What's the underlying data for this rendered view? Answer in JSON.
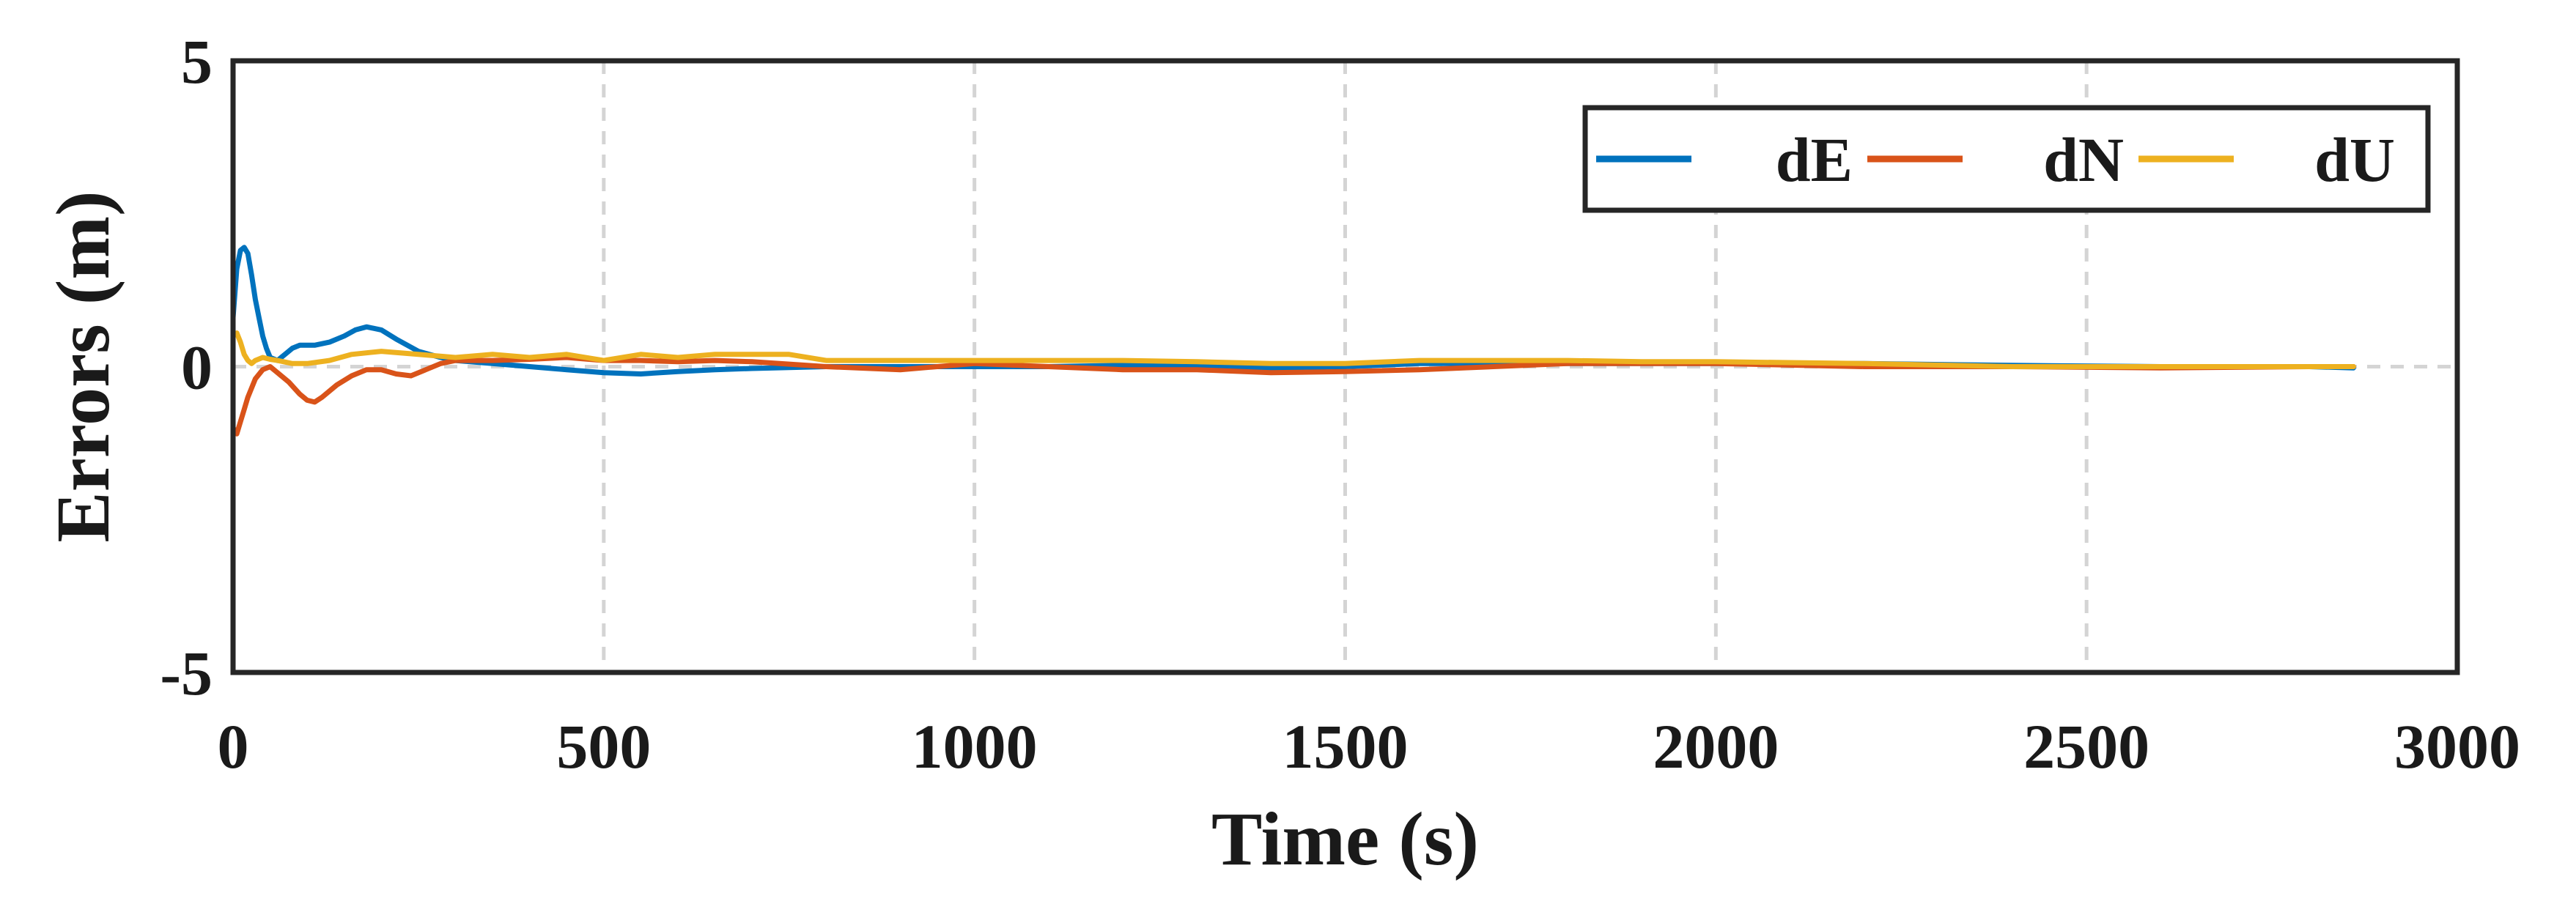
{
  "chart_data": {
    "type": "line",
    "title": "",
    "xlabel": "Time (s)",
    "ylabel": "Errors (m)",
    "xlim": [
      0,
      3000
    ],
    "ylim": [
      -5,
      5
    ],
    "xticks": [
      "0",
      "500",
      "1000",
      "1500",
      "2000",
      "2500",
      "3000"
    ],
    "yticks": [
      "-5",
      "0",
      "5"
    ],
    "grid": "vertical dashed",
    "legend": "top-right, horizontal",
    "series": [
      {
        "name": "dE",
        "color": "#0072BD",
        "x": [
          0,
          5,
          10,
          15,
          20,
          25,
          30,
          35,
          40,
          45,
          50,
          60,
          70,
          80,
          90,
          110,
          130,
          150,
          165,
          180,
          200,
          220,
          250,
          280,
          300,
          350,
          400,
          450,
          500,
          550,
          600,
          650,
          700,
          800,
          900,
          1000,
          1100,
          1200,
          1300,
          1400,
          1500,
          1600,
          1700,
          1800,
          1900,
          2000,
          2200,
          2400,
          2600,
          2800,
          2860
        ],
        "y": [
          0.8,
          1.6,
          1.9,
          1.95,
          1.85,
          1.5,
          1.1,
          0.8,
          0.5,
          0.3,
          0.15,
          0.1,
          0.2,
          0.3,
          0.35,
          0.35,
          0.4,
          0.5,
          0.6,
          0.65,
          0.6,
          0.45,
          0.25,
          0.15,
          0.1,
          0.05,
          0.0,
          -0.05,
          -0.1,
          -0.12,
          -0.08,
          -0.05,
          -0.03,
          0.0,
          0.0,
          0.0,
          0.0,
          0.02,
          0.0,
          -0.02,
          0.0,
          0.05,
          0.05,
          0.05,
          0.05,
          0.05,
          0.05,
          0.02,
          0.0,
          0.0,
          -0.02
        ]
      },
      {
        "name": "dN",
        "color": "#D95319",
        "x": [
          0,
          5,
          10,
          15,
          20,
          30,
          40,
          50,
          60,
          75,
          90,
          100,
          110,
          120,
          140,
          160,
          180,
          200,
          220,
          240,
          260,
          280,
          300,
          350,
          400,
          450,
          500,
          550,
          600,
          650,
          700,
          800,
          900,
          1000,
          1100,
          1200,
          1300,
          1400,
          1500,
          1600,
          1700,
          1800,
          1900,
          2000,
          2200,
          2400,
          2600,
          2800,
          2860
        ],
        "y": [
          -1.0,
          -1.1,
          -0.9,
          -0.7,
          -0.5,
          -0.2,
          -0.05,
          0.0,
          -0.1,
          -0.25,
          -0.45,
          -0.55,
          -0.58,
          -0.5,
          -0.3,
          -0.15,
          -0.05,
          -0.05,
          -0.12,
          -0.15,
          -0.05,
          0.05,
          0.1,
          0.1,
          0.12,
          0.15,
          0.1,
          0.1,
          0.08,
          0.1,
          0.08,
          0.0,
          -0.05,
          0.05,
          0.0,
          -0.05,
          -0.05,
          -0.1,
          -0.08,
          -0.05,
          0.0,
          0.05,
          0.05,
          0.05,
          0.0,
          0.0,
          -0.02,
          0.0,
          0.0
        ]
      },
      {
        "name": "dU",
        "color": "#EDB120",
        "x": [
          0,
          5,
          10,
          15,
          20,
          25,
          30,
          40,
          50,
          60,
          80,
          100,
          130,
          160,
          200,
          250,
          300,
          350,
          400,
          450,
          500,
          550,
          600,
          650,
          700,
          750,
          800,
          900,
          1000,
          1100,
          1200,
          1300,
          1400,
          1500,
          1600,
          1700,
          1800,
          1900,
          2000,
          2200,
          2400,
          2600,
          2800,
          2860
        ],
        "y": [
          0.5,
          0.55,
          0.4,
          0.2,
          0.1,
          0.05,
          0.1,
          0.15,
          0.12,
          0.1,
          0.05,
          0.05,
          0.1,
          0.2,
          0.25,
          0.2,
          0.15,
          0.2,
          0.15,
          0.2,
          0.1,
          0.2,
          0.15,
          0.2,
          0.2,
          0.2,
          0.1,
          0.1,
          0.1,
          0.1,
          0.1,
          0.08,
          0.05,
          0.05,
          0.1,
          0.1,
          0.1,
          0.08,
          0.08,
          0.05,
          0.0,
          0.0,
          0.0,
          0.0
        ]
      }
    ]
  }
}
